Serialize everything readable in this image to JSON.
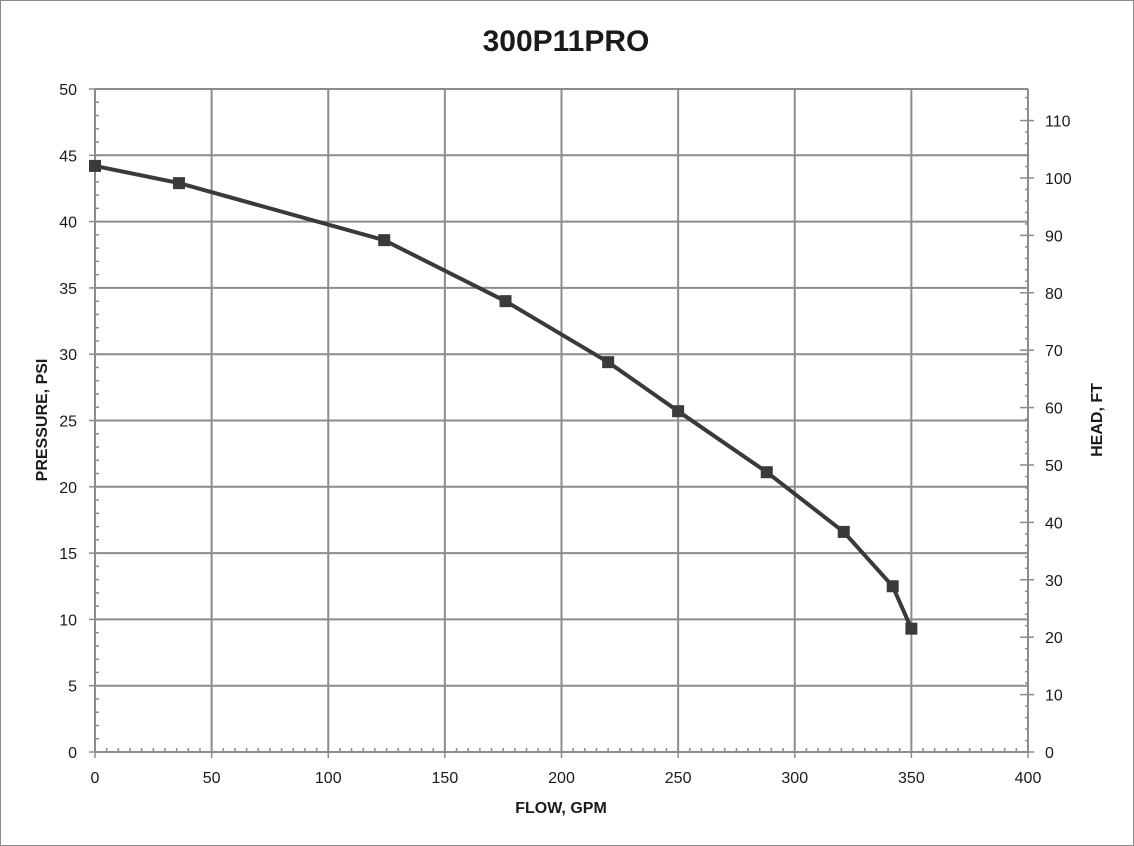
{
  "chart_data": {
    "type": "line",
    "title": "300P11PRO",
    "xlabel": "FLOW, GPM",
    "ylabel": "PRESSURE, PSI",
    "ylabel_right": "HEAD, FT",
    "xlim": [
      0,
      400
    ],
    "ylim": [
      0,
      50
    ],
    "ylim_right": [
      0,
      115.5
    ],
    "x_ticks": [
      0,
      50,
      100,
      150,
      200,
      250,
      300,
      350,
      400
    ],
    "y_ticks": [
      0,
      5,
      10,
      15,
      20,
      25,
      30,
      35,
      40,
      45,
      50
    ],
    "y_right_ticks": [
      0,
      10,
      20,
      30,
      40,
      50,
      60,
      70,
      80,
      90,
      100,
      110
    ],
    "grid": true,
    "series": [
      {
        "x": [
          0,
          36,
          124,
          176,
          220,
          250,
          288,
          321,
          342,
          350
        ],
        "y": [
          44.2,
          42.9,
          38.6,
          34.0,
          29.4,
          25.7,
          21.1,
          16.6,
          12.5,
          9.3
        ]
      }
    ],
    "colors": {
      "line": "#3a3a3a",
      "marker": "#3a3a3a",
      "grid": "#8c8c8c",
      "axis": "#8c8c8c",
      "text": "#1a1a1a"
    }
  }
}
